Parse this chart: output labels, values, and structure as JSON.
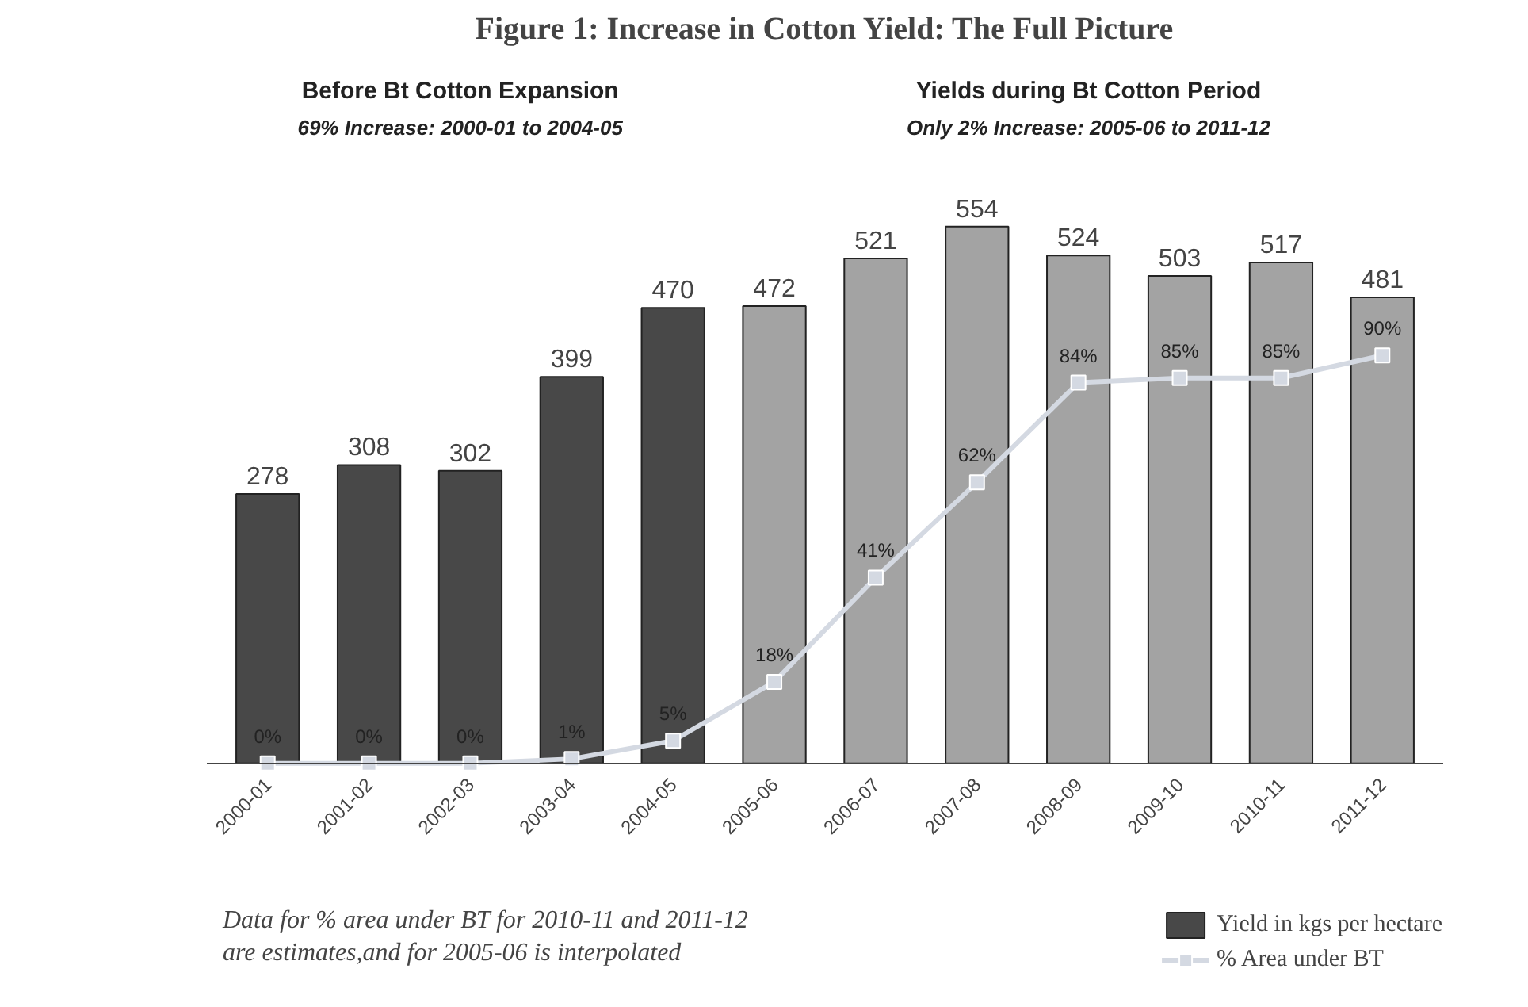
{
  "chart_data": {
    "type": "bar",
    "title": "Figure 1: Increase in Cotton Yield: The Full Picture",
    "categories": [
      "2000-01",
      "2001-02",
      "2002-03",
      "2003-04",
      "2004-05",
      "2005-06",
      "2006-07",
      "2007-08",
      "2008-09",
      "2009-10",
      "2010-11",
      "2011-12"
    ],
    "series": [
      {
        "name": "Yield in kgs per hectare",
        "colors": [
          "#484848",
          "#484848",
          "#484848",
          "#484848",
          "#484848",
          "#a3a3a3",
          "#a3a3a3",
          "#a3a3a3",
          "#a3a3a3",
          "#a3a3a3",
          "#a3a3a3",
          "#a3a3a3"
        ],
        "values": [
          278,
          308,
          302,
          399,
          470,
          472,
          521,
          554,
          524,
          503,
          517,
          481
        ]
      },
      {
        "name": "% Area under BT",
        "type": "line",
        "axis": "y2",
        "color": "#d4d9e2",
        "marker": "square",
        "values": [
          0,
          0,
          0,
          1,
          5,
          18,
          41,
          62,
          84,
          85,
          85,
          90
        ],
        "value_labels": [
          "0%",
          "0%",
          "0%",
          "1%",
          "5%",
          "18%",
          "41%",
          "62%",
          "84%",
          "85%",
          "85%",
          "90%"
        ]
      }
    ],
    "data_labels": true,
    "tick_labels": "x",
    "grid": false,
    "legend": "bottom right",
    "annotations": [
      "Before Bt Cotton Expansion",
      "69% Increase: 2000-01 to 2004-05",
      "Yields during Bt Cotton Period",
      "Only 2% Increase: 2005-06 to 2011-12",
      "Data for % area under BT for 2010-11 and 2011-12\nare estimates,and for 2005-06 is interpolated"
    ]
  }
}
